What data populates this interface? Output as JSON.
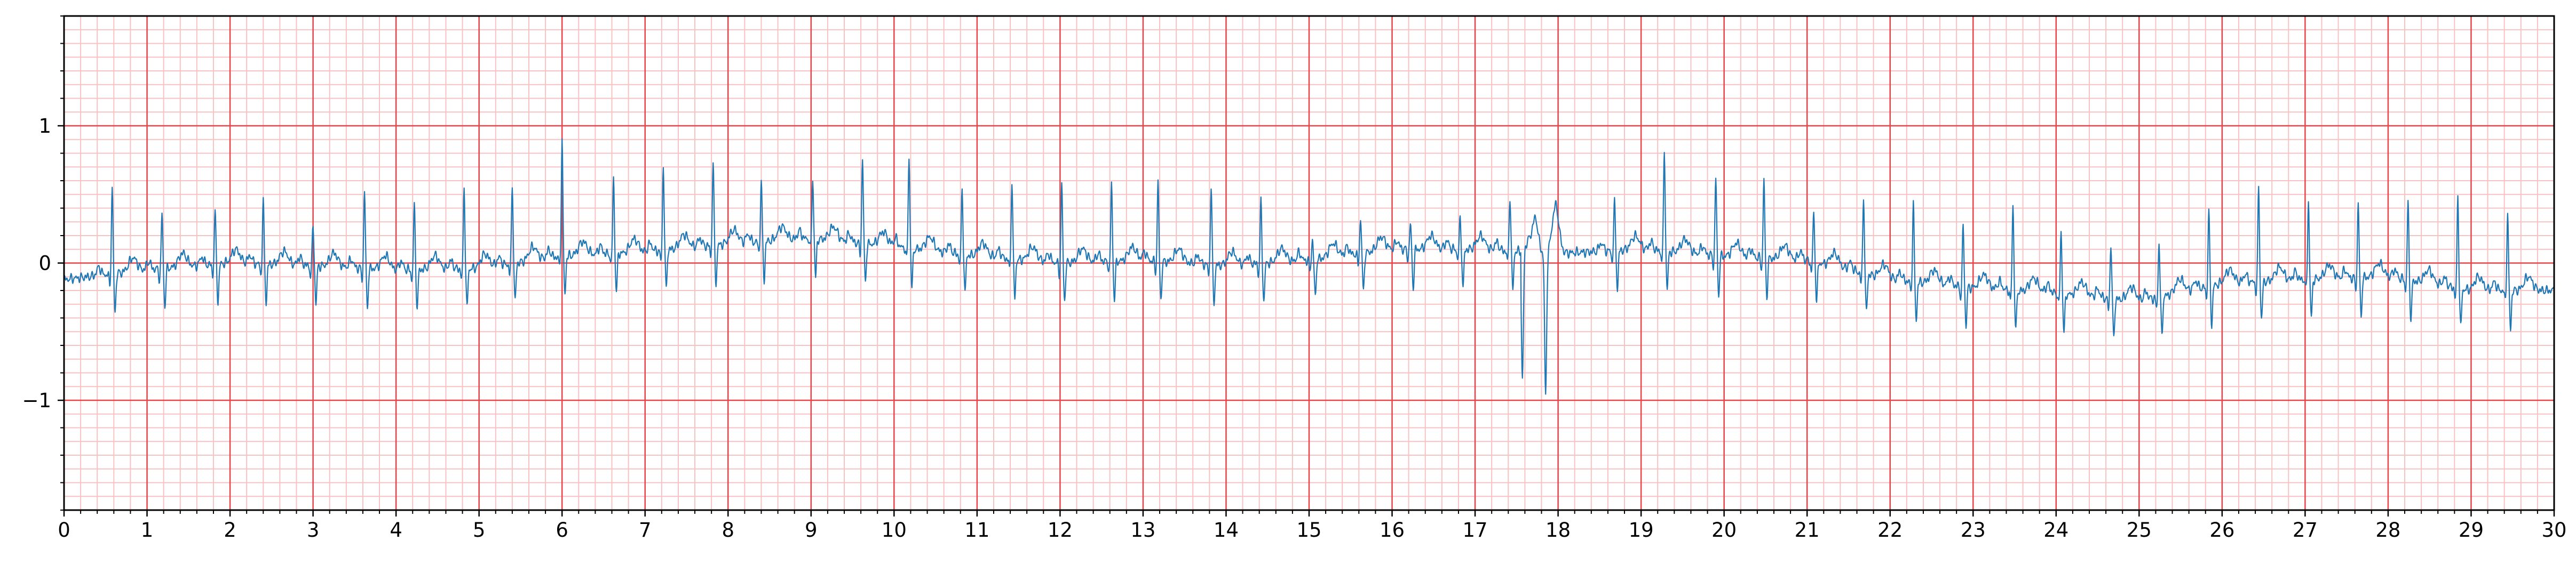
{
  "chart_data": {
    "type": "line",
    "title": "",
    "xlabel": "",
    "ylabel": "",
    "xlim": [
      0,
      30
    ],
    "ylim": [
      -1.8,
      1.8
    ],
    "x_ticks": [
      "0",
      "1",
      "2",
      "3",
      "4",
      "5",
      "6",
      "7",
      "8",
      "9",
      "10",
      "11",
      "12",
      "13",
      "14",
      "15",
      "16",
      "17",
      "18",
      "19",
      "20",
      "21",
      "22",
      "23",
      "24",
      "25",
      "26",
      "27",
      "28",
      "29",
      "30"
    ],
    "y_ticks": [
      {
        "value": 1,
        "label": "1"
      },
      {
        "value": 0,
        "label": "0"
      },
      {
        "value": -1,
        "label": "−1"
      }
    ],
    "grid": true,
    "grid_major_x": 1,
    "grid_minor_x": 0.2,
    "grid_major_y": 1,
    "grid_minor_y": 0.1,
    "colors": {
      "trace": "#1f77b4",
      "major_grid": "#e8454a",
      "minor_grid": "#f7c2c4",
      "axes": "#000000"
    },
    "series": [
      {
        "beats": [
          0.58,
          1.18,
          1.82,
          2.4,
          3.0,
          3.62,
          4.22,
          4.82,
          5.4,
          6.0,
          6.62,
          7.22,
          7.82,
          8.4,
          9.02,
          9.62,
          10.18,
          10.82,
          11.42,
          12.02,
          12.62,
          13.18,
          13.82,
          14.42,
          15.04,
          15.62,
          16.22,
          16.82,
          17.42,
          17.85,
          18.68,
          19.28,
          19.9,
          20.48,
          21.08,
          21.68,
          22.28,
          22.88,
          23.48,
          24.06,
          24.66,
          25.24,
          25.84,
          26.44,
          27.04,
          27.64,
          28.24,
          28.84,
          29.44
        ],
        "r_amplitude": [
          0.63,
          0.4,
          0.38,
          0.45,
          0.3,
          0.57,
          0.47,
          0.6,
          0.58,
          0.85,
          0.55,
          0.62,
          0.6,
          0.43,
          0.43,
          0.62,
          0.67,
          0.47,
          0.57,
          0.57,
          0.57,
          0.57,
          0.57,
          0.45,
          0.14,
          0.25,
          0.18,
          0.22,
          0.4,
          -1.35,
          0.35,
          0.75,
          0.57,
          0.57,
          0.35,
          0.57,
          0.57,
          0.45,
          0.63,
          0.45,
          0.4,
          0.4,
          0.55,
          0.7,
          0.57,
          0.55,
          0.57,
          0.68,
          0.57
        ],
        "baseline": [
          -0.12,
          -0.05,
          0.0,
          -0.02,
          -0.05,
          -0.04,
          0.05,
          0.08,
          0.14,
          0.18,
          0.12,
          0.05,
          0.0,
          0.02,
          -0.02,
          0.02,
          0.1,
          0.1,
          0.07,
          0.1,
          0.05,
          0.02,
          -0.12,
          -0.18,
          -0.22,
          -0.28,
          -0.15,
          -0.12,
          -0.1,
          -0.2,
          -0.2,
          -0.25,
          -0.05,
          0.0,
          -0.05,
          -0.08,
          -0.05,
          -0.05,
          -0.12,
          -0.2,
          -0.08,
          -0.05,
          0.0,
          0.05,
          0.07,
          0.1,
          0.12,
          0.12,
          0.1,
          0.12
        ]
      }
    ]
  }
}
